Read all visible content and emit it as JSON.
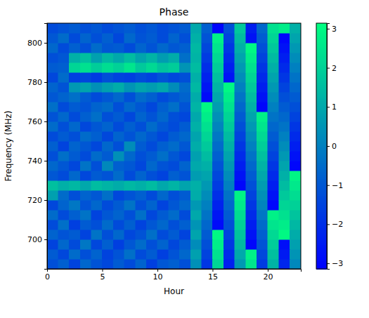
{
  "chart_data": {
    "type": "heatmap",
    "title": "Phase",
    "x_label": "Hour",
    "y_label": "Frequency (MHz)",
    "xlim": [
      0,
      23
    ],
    "xticks": [
      0,
      5,
      10,
      15,
      20
    ],
    "ylim": [
      685,
      810
    ],
    "yticks": [
      700,
      720,
      740,
      760,
      780,
      800
    ],
    "x_edges": [
      0,
      1,
      2,
      3,
      4,
      5,
      6,
      7,
      8,
      9,
      10,
      11,
      12,
      13,
      14,
      15,
      16,
      17,
      18,
      19,
      20,
      21,
      22,
      23
    ],
    "y_edges": [
      685,
      690,
      695,
      700,
      705,
      710,
      715,
      720,
      725,
      730,
      735,
      740,
      745,
      750,
      755,
      760,
      765,
      770,
      775,
      780,
      785,
      790,
      795,
      800,
      805,
      810
    ],
    "z": [
      [
        -1.2,
        -0.8,
        -1.5,
        -0.6,
        -1.1,
        -1.4,
        -0.9,
        -1.3,
        -0.7,
        -1.6,
        -1.0,
        -0.8,
        -1.2,
        0.4,
        -1.8,
        2.1,
        -2.4,
        0.6,
        2.5,
        -1.7,
        1.3,
        -2.2,
        0.2
      ],
      [
        -0.9,
        -1.4,
        -0.5,
        -1.2,
        -0.7,
        -1.5,
        -1.1,
        -0.4,
        -1.3,
        -0.9,
        -1.6,
        -1.1,
        -0.6,
        0.8,
        -1.5,
        2.4,
        -2.1,
        1.0,
        2.8,
        -1.4,
        1.6,
        -2.5,
        0.5
      ],
      [
        -1.5,
        -0.6,
        -1.3,
        -0.2,
        -1.4,
        -0.8,
        -1.6,
        -1.0,
        -0.5,
        -1.2,
        -0.7,
        -1.4,
        -0.9,
        0.3,
        -1.2,
        2.7,
        -1.8,
        1.4,
        -3.0,
        -1.1,
        1.9,
        -2.8,
        0.8
      ],
      [
        -0.7,
        -1.1,
        -0.9,
        -1.5,
        -0.3,
        -1.2,
        -0.6,
        -1.4,
        -1.1,
        -0.4,
        -1.3,
        -0.9,
        -1.5,
        0.9,
        -0.9,
        3.0,
        -1.5,
        1.7,
        -2.7,
        -0.8,
        2.2,
        3.0,
        1.1
      ],
      [
        -1.3,
        -0.4,
        -1.6,
        -0.9,
        -1.2,
        -0.5,
        -1.3,
        -0.8,
        -1.5,
        -1.0,
        -0.6,
        -1.2,
        -0.8,
        0.5,
        -0.6,
        -2.9,
        -1.2,
        2.0,
        -2.4,
        -0.5,
        2.5,
        2.7,
        1.4
      ],
      [
        -0.5,
        -1.3,
        -0.8,
        -0.3,
        -1.5,
        -1.0,
        -0.7,
        -1.2,
        -0.4,
        -1.4,
        -0.9,
        -0.5,
        -1.3,
        1.0,
        -0.3,
        -2.6,
        -0.9,
        2.3,
        -2.1,
        -0.2,
        2.8,
        2.4,
        1.7
      ],
      [
        -1.4,
        -0.7,
        -0.2,
        -1.1,
        -0.6,
        -1.3,
        -0.9,
        -0.3,
        -1.2,
        -0.7,
        -1.5,
        -1.0,
        -0.6,
        0.6,
        0.0,
        -2.3,
        -0.6,
        2.6,
        -1.8,
        0.1,
        -3.0,
        2.1,
        2.0
      ],
      [
        0.8,
        -0.5,
        -1.2,
        -0.7,
        -1.0,
        -0.4,
        -1.4,
        -1.1,
        -0.8,
        -1.3,
        -0.6,
        -1.2,
        -0.9,
        1.1,
        0.3,
        -2.0,
        -0.3,
        2.9,
        -1.5,
        0.4,
        -2.7,
        1.8,
        2.3
      ],
      [
        1.6,
        1.2,
        1.4,
        1.0,
        1.5,
        1.3,
        1.1,
        1.4,
        1.2,
        1.5,
        1.0,
        1.3,
        0.9,
        1.2,
        0.6,
        -1.7,
        0.0,
        -3.0,
        -1.2,
        0.7,
        -2.4,
        1.5,
        2.6
      ],
      [
        -1.0,
        -1.3,
        -0.6,
        -1.4,
        -0.9,
        -1.1,
        -0.5,
        -1.3,
        -0.7,
        -1.2,
        -1.5,
        -0.8,
        -1.1,
        0.7,
        0.9,
        -1.4,
        0.3,
        -2.7,
        -0.9,
        1.0,
        -2.1,
        1.2,
        2.9
      ],
      [
        -0.6,
        -1.0,
        -1.4,
        -0.3,
        -1.2,
        0.2,
        -0.8,
        -1.0,
        -1.4,
        -0.6,
        -1.1,
        -1.3,
        -0.7,
        1.0,
        1.2,
        -1.1,
        0.6,
        -2.4,
        -0.6,
        1.3,
        -1.8,
        0.9,
        -3.0
      ],
      [
        -1.2,
        -0.4,
        -0.9,
        -1.3,
        -0.5,
        -0.9,
        0.4,
        -0.6,
        -1.2,
        -0.9,
        -0.4,
        -1.0,
        -1.4,
        0.8,
        1.5,
        -0.8,
        0.9,
        -2.1,
        -0.3,
        1.6,
        -1.5,
        0.6,
        -2.7
      ],
      [
        -0.8,
        -1.5,
        -0.7,
        -1.0,
        -1.4,
        -0.6,
        -1.2,
        0.3,
        -0.9,
        -1.3,
        -0.8,
        -0.5,
        -1.0,
        1.1,
        1.8,
        -0.5,
        1.2,
        -1.8,
        0.0,
        1.9,
        -1.2,
        0.3,
        -2.4
      ],
      [
        -1.3,
        -0.9,
        -1.2,
        -0.5,
        -0.8,
        -1.4,
        -0.7,
        -1.1,
        -0.6,
        -1.0,
        -1.4,
        -0.9,
        -0.6,
        0.9,
        2.1,
        -0.2,
        1.5,
        -1.5,
        0.3,
        2.2,
        -0.9,
        0.0,
        -2.1
      ],
      [
        -0.5,
        -1.2,
        -0.6,
        -1.4,
        -1.0,
        -0.7,
        -1.3,
        -0.8,
        -1.2,
        -0.5,
        -1.0,
        -1.3,
        -0.9,
        1.2,
        2.4,
        0.1,
        1.8,
        -1.2,
        0.6,
        2.5,
        -0.6,
        -0.3,
        -1.8
      ],
      [
        -1.1,
        -0.6,
        -1.3,
        -0.8,
        -0.4,
        -1.2,
        -0.9,
        -1.4,
        -0.7,
        -1.1,
        -0.6,
        -1.2,
        -1.4,
        1.0,
        2.7,
        0.4,
        2.1,
        -0.9,
        0.9,
        2.8,
        -0.3,
        -0.6,
        -1.5
      ],
      [
        -0.4,
        -1.3,
        -0.9,
        -1.1,
        -0.7,
        -0.5,
        -1.2,
        -0.6,
        -1.0,
        -1.4,
        -0.8,
        -0.4,
        -1.1,
        1.3,
        3.0,
        0.7,
        2.4,
        -0.6,
        1.2,
        -3.0,
        0.0,
        -0.9,
        -1.2
      ],
      [
        -1.0,
        -0.7,
        -0.4,
        -0.9,
        -1.3,
        -1.0,
        -0.6,
        -1.2,
        -0.5,
        -0.8,
        -1.3,
        -1.0,
        -0.7,
        1.1,
        -2.9,
        1.0,
        2.7,
        -0.3,
        1.5,
        -2.7,
        0.3,
        -1.2,
        -0.9
      ],
      [
        -0.7,
        -1.1,
        0.6,
        0.9,
        0.4,
        0.8,
        1.1,
        0.5,
        0.9,
        0.7,
        1.0,
        0.3,
        -0.5,
        1.4,
        -2.6,
        1.3,
        3.0,
        0.0,
        1.8,
        -2.4,
        0.6,
        -1.5,
        -0.6
      ],
      [
        -1.4,
        -0.5,
        -1.6,
        -1.4,
        -1.7,
        -1.2,
        -1.5,
        -1.6,
        -1.3,
        -1.5,
        -1.1,
        -1.4,
        -1.2,
        1.2,
        -2.3,
        1.6,
        -2.7,
        0.3,
        2.1,
        -2.1,
        0.9,
        -1.8,
        -0.3
      ],
      [
        -0.9,
        -0.8,
        2.1,
        2.4,
        1.9,
        2.3,
        2.0,
        2.5,
        1.8,
        2.2,
        1.7,
        1.9,
        0.5,
        1.5,
        -2.0,
        1.9,
        -2.4,
        0.6,
        2.4,
        -1.8,
        1.2,
        -2.1,
        0.0
      ],
      [
        -1.2,
        -1.0,
        1.2,
        1.6,
        0.8,
        1.4,
        1.0,
        1.5,
        0.9,
        1.3,
        0.7,
        1.1,
        -0.4,
        1.3,
        -1.7,
        2.2,
        -2.1,
        0.9,
        2.7,
        -1.5,
        1.5,
        -2.4,
        0.3
      ],
      [
        -0.6,
        -1.3,
        -0.8,
        -1.2,
        -0.5,
        -1.0,
        -0.9,
        -1.3,
        -0.7,
        -1.1,
        -0.6,
        -1.0,
        -0.8,
        1.4,
        -1.4,
        2.5,
        -1.8,
        1.2,
        3.0,
        -1.2,
        1.8,
        -2.7,
        0.6
      ],
      [
        -1.0,
        -0.5,
        -1.3,
        -0.7,
        -1.2,
        -0.8,
        -1.4,
        -0.6,
        -1.1,
        -0.9,
        -1.3,
        -0.7,
        -1.2,
        1.2,
        -1.1,
        2.8,
        -1.5,
        1.5,
        -2.7,
        -0.9,
        2.1,
        -3.0,
        0.9
      ],
      [
        -1.3,
        -1.1,
        -0.9,
        -1.2,
        -1.0,
        -1.3,
        -1.1,
        -0.9,
        -1.2,
        -1.0,
        -1.3,
        -1.1,
        -0.9,
        1.0,
        -0.8,
        -3.0,
        -1.2,
        1.8,
        -2.4,
        -0.6,
        2.4,
        2.7,
        1.2
      ]
    ],
    "colorbar": {
      "range": [
        -3.1416,
        3.1416
      ],
      "ticks": [
        {
          "value": -3,
          "label": "−3"
        },
        {
          "value": -2,
          "label": "−2"
        },
        {
          "value": -1,
          "label": "−1"
        },
        0,
        1,
        2,
        3
      ]
    }
  }
}
